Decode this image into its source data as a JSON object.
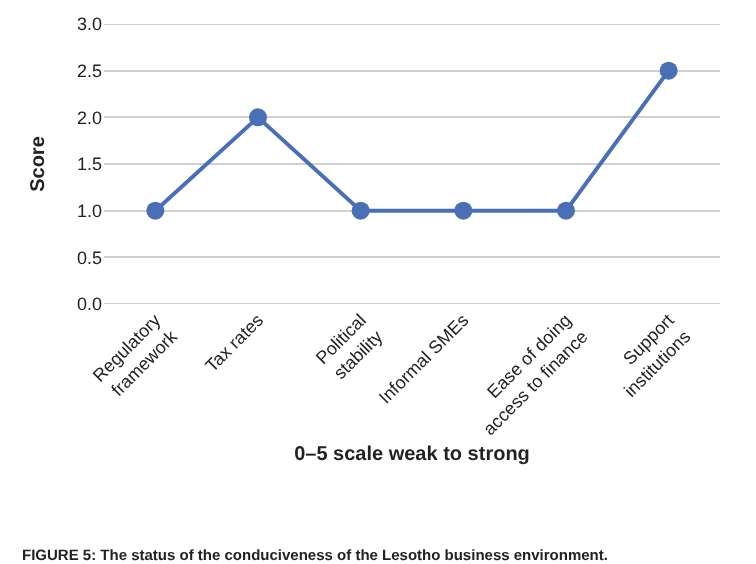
{
  "chart_data": {
    "type": "line",
    "categories": [
      "Regulatory framework",
      "Tax rates",
      "Political stability",
      "Informal SMEs",
      "Ease of doing access to finance",
      "Support institutions"
    ],
    "values": [
      1,
      2,
      1,
      1,
      1,
      2.5
    ],
    "color": "#4a6fb5",
    "ylim": [
      0,
      3
    ],
    "yticks": [
      {
        "value": 0,
        "label": "0.0"
      },
      {
        "value": 0.5,
        "label": "0.5"
      },
      {
        "value": 1,
        "label": "1.0"
      },
      {
        "value": 1.5,
        "label": "1.5"
      },
      {
        "value": 2,
        "label": "2.0"
      },
      {
        "value": 2.5,
        "label": "2.5"
      },
      {
        "value": 3,
        "label": "3.0"
      }
    ],
    "xlabel": "0–5 scale weak to strong",
    "ylabel": "Score",
    "marker": "circle",
    "line_style": "solid",
    "grid": "y",
    "annotations": [
      "FIGURE 5: The status of the conduciveness of the Lesotho business environment."
    ]
  }
}
